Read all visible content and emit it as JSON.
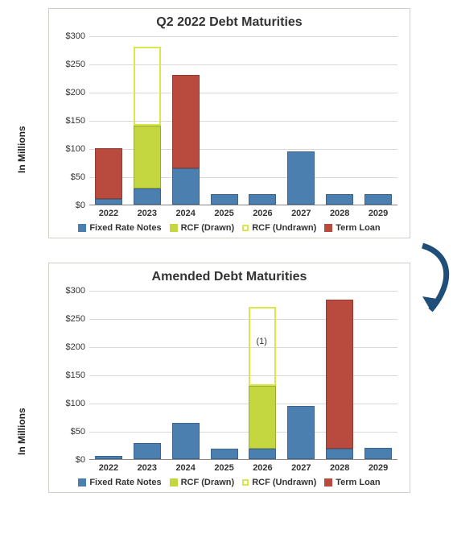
{
  "colors": {
    "fixed_rate": "#4a7fb0",
    "rcf_drawn": "#c4d640",
    "rcf_undrawn": "#d8e84a",
    "term_loan": "#b94a3e",
    "grid": "#d9d9d9",
    "panel_border": "#d0cfc8",
    "arrow": "#1f4e79"
  },
  "ylabel": "In Millions",
  "ytick_prefix": "$",
  "chart1": {
    "title": "Q2 2022 Debt Maturities",
    "ylim": [
      0,
      300
    ],
    "ystep": 50,
    "categories": [
      "2022",
      "2023",
      "2024",
      "2025",
      "2026",
      "2027",
      "2028",
      "2029"
    ],
    "stacks": [
      [
        {
          "series": "fixed_rate",
          "value": 10,
          "filled": true
        },
        {
          "series": "term_loan",
          "value": 90,
          "filled": true
        }
      ],
      [
        {
          "series": "fixed_rate",
          "value": 28,
          "filled": true
        },
        {
          "series": "rcf_drawn",
          "value": 112,
          "filled": true
        },
        {
          "series": "rcf_undrawn",
          "value": 140,
          "filled": false
        }
      ],
      [
        {
          "series": "fixed_rate",
          "value": 65,
          "filled": true
        },
        {
          "series": "term_loan",
          "value": 165,
          "filled": true
        }
      ],
      [
        {
          "series": "fixed_rate",
          "value": 18,
          "filled": true
        }
      ],
      [
        {
          "series": "fixed_rate",
          "value": 18,
          "filled": true
        }
      ],
      [
        {
          "series": "fixed_rate",
          "value": 95,
          "filled": true
        }
      ],
      [
        {
          "series": "fixed_rate",
          "value": 18,
          "filled": true
        }
      ],
      [
        {
          "series": "fixed_rate",
          "value": 18,
          "filled": true
        }
      ]
    ]
  },
  "chart2": {
    "title": "Amended Debt Maturities",
    "ylim": [
      0,
      300
    ],
    "ystep": 50,
    "categories": [
      "2022",
      "2023",
      "2024",
      "2025",
      "2026",
      "2027",
      "2028",
      "2029"
    ],
    "annotation": {
      "text": "(1)",
      "category_index": 4,
      "y": 210
    },
    "stacks": [
      [
        {
          "series": "fixed_rate",
          "value": 6,
          "filled": true
        }
      ],
      [
        {
          "series": "fixed_rate",
          "value": 28,
          "filled": true
        }
      ],
      [
        {
          "series": "fixed_rate",
          "value": 65,
          "filled": true
        }
      ],
      [
        {
          "series": "fixed_rate",
          "value": 18,
          "filled": true
        }
      ],
      [
        {
          "series": "fixed_rate",
          "value": 18,
          "filled": true
        },
        {
          "series": "rcf_drawn",
          "value": 112,
          "filled": true
        },
        {
          "series": "rcf_undrawn",
          "value": 140,
          "filled": false
        }
      ],
      [
        {
          "series": "fixed_rate",
          "value": 95,
          "filled": true
        }
      ],
      [
        {
          "series": "fixed_rate",
          "value": 18,
          "filled": true
        },
        {
          "series": "term_loan",
          "value": 265,
          "filled": true
        }
      ],
      [
        {
          "series": "fixed_rate",
          "value": 20,
          "filled": true
        }
      ]
    ]
  },
  "legend": [
    {
      "key": "fixed_rate",
      "label": "Fixed Rate Notes",
      "filled": true
    },
    {
      "key": "rcf_drawn",
      "label": "RCF (Drawn)",
      "filled": true
    },
    {
      "key": "rcf_undrawn",
      "label": "RCF (Undrawn)",
      "filled": false
    },
    {
      "key": "term_loan",
      "label": "Term Loan",
      "filled": true
    }
  ]
}
